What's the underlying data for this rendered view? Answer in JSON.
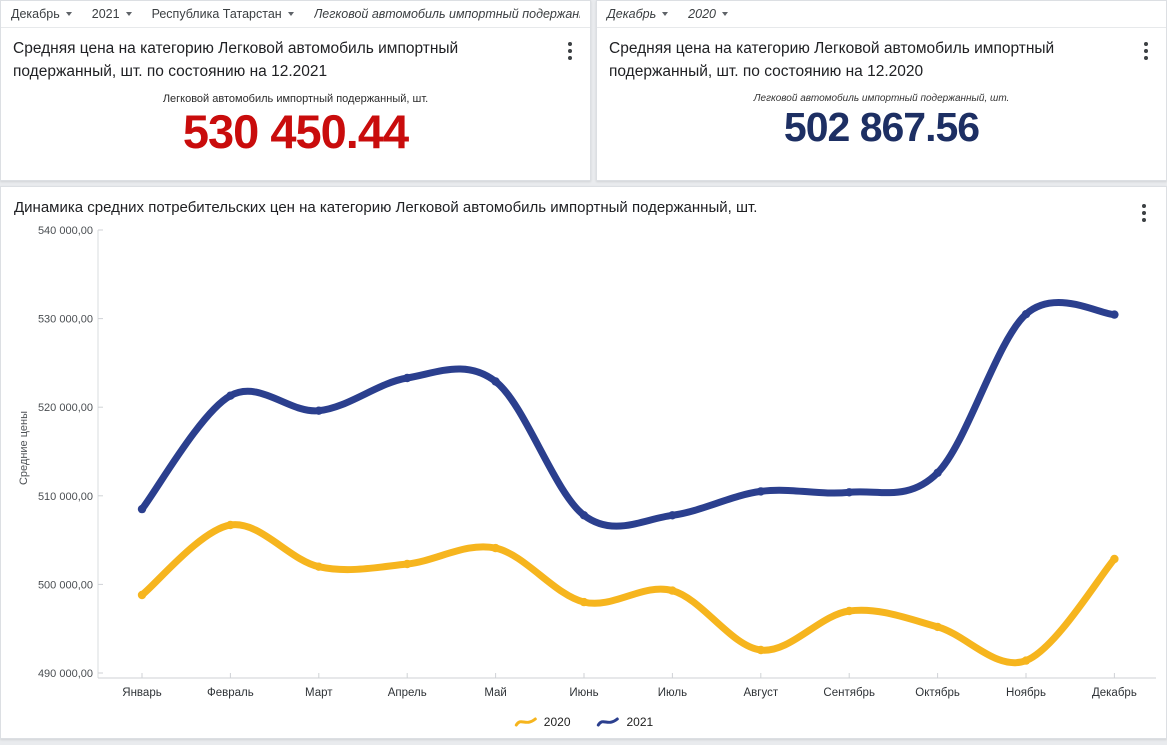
{
  "page": {
    "background": "#e9ebee"
  },
  "kpi_2021": {
    "filters": [
      {
        "label": "Декабрь"
      },
      {
        "label": "2021"
      },
      {
        "label": "Республика Татарстан"
      },
      {
        "label": "Легковой автомобиль импортный подержанный, ш"
      }
    ],
    "title": "Средняя цена на категорию Легковой автомобиль импортный подержанный, шт. по состоянию на 12.2021",
    "metric_label": "Легковой автомобиль импортный подержанный, шт.",
    "metric_value": "530 450.44",
    "value_color": "#c90c0c"
  },
  "kpi_2020": {
    "filters": [
      {
        "label": "Декабрь"
      },
      {
        "label": "2020"
      }
    ],
    "title": "Средняя цена на категорию Легковой автомобиль импортный подержанный, шт. по состоянию на 12.2020",
    "metric_label": "Легковой автомобиль импортный подержанный, шт.",
    "metric_value": "502 867.56",
    "value_color": "#1d2f63"
  },
  "chart": {
    "title": "Динамика средних потребительских цен на категорию Легковой автомобиль импортный подержанный, шт.",
    "y_axis_label": "Средние цены",
    "y_tick_labels": [
      "490 000,00",
      "500 000,00",
      "510 000,00",
      "520 000,00",
      "530 000,00",
      "540 000,00"
    ]
  },
  "chart_data": {
    "type": "line",
    "title": "Динамика средних потребительских цен на категорию Легковой автомобиль импортный подержанный, шт.",
    "categories": [
      "Январь",
      "Февраль",
      "Март",
      "Апрель",
      "Май",
      "Июнь",
      "Июль",
      "Август",
      "Сентябрь",
      "Октябрь",
      "Ноябрь",
      "Декабрь"
    ],
    "series": [
      {
        "name": "2020",
        "color": "#f6b51e",
        "values": [
          498800,
          506700,
          502000,
          502300,
          504100,
          498000,
          499300,
          492600,
          497000,
          495200,
          491400,
          502867.56
        ]
      },
      {
        "name": "2021",
        "color": "#2b3f8e",
        "values": [
          508500,
          521300,
          519600,
          523300,
          522900,
          507800,
          507800,
          510500,
          510400,
          512600,
          530500,
          530450.44
        ]
      }
    ],
    "xlabel": "",
    "ylabel": "Средние цены",
    "ylim": [
      490000,
      540000
    ],
    "y_tick_step": 10000,
    "grid": false,
    "legend_position": "bottom"
  }
}
